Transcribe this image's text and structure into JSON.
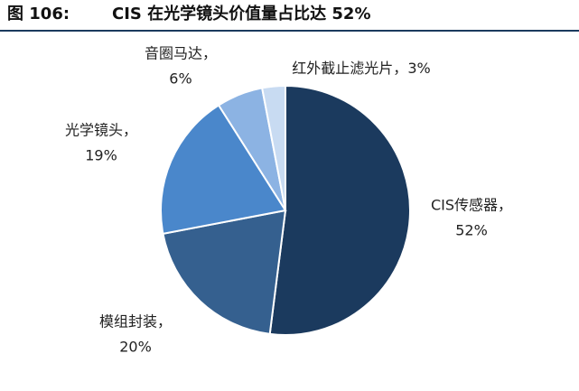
{
  "chart_data": {
    "type": "pie",
    "figure_label": "图 106:",
    "title": "CIS 在光学镜头价值量占比达 52%",
    "categories": [
      "CIS传感器，",
      "模组封装，",
      "光学镜头，",
      "音圈马达，",
      "红外截止滤光片，"
    ],
    "values": [
      52,
      20,
      19,
      6,
      3
    ],
    "value_labels": [
      "52%",
      "20%",
      "19%",
      "6%",
      "3%"
    ],
    "colors": [
      "#1b3a5e",
      "#35608f",
      "#4a87cb",
      "#8cb3e3",
      "#c8dbf2"
    ]
  }
}
